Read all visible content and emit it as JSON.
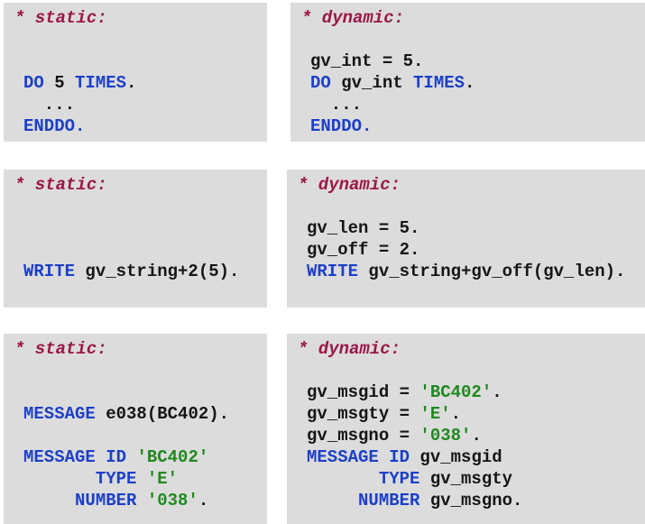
{
  "colors": {
    "background": "#dcdcdc",
    "comment": "#9b1748",
    "keyword": "#1c3fc8",
    "string": "#1f8a1f",
    "text": "#151515"
  },
  "boxes": [
    {
      "comment": "* static:",
      "lines": [
        [],
        [
          [
            "DO",
            "kw"
          ],
          [
            " 5 ",
            "tx"
          ],
          [
            "TIMES",
            "kw"
          ],
          [
            ".",
            "tx"
          ]
        ],
        [
          [
            "  ...",
            "tx"
          ]
        ],
        [
          [
            "ENDDO.",
            "kw"
          ]
        ]
      ]
    },
    {
      "comment": "* dynamic:",
      "lines": [
        [
          [
            "gv_int = 5.",
            "tx"
          ]
        ],
        [
          [
            "DO",
            "kw"
          ],
          [
            " gv_int ",
            "tx"
          ],
          [
            "TIMES",
            "kw"
          ],
          [
            ".",
            "tx"
          ]
        ],
        [
          [
            "  ...",
            "tx"
          ]
        ],
        [
          [
            "ENDDO.",
            "kw"
          ]
        ]
      ]
    },
    {
      "comment": "* static:",
      "lines": [
        [],
        [],
        [
          [
            "WRITE",
            "kw"
          ],
          [
            " gv_string+2(5).",
            "tx"
          ]
        ]
      ]
    },
    {
      "comment": "* dynamic:",
      "lines": [
        [
          [
            "gv_len = 5.",
            "tx"
          ]
        ],
        [
          [
            "gv_off = 2.",
            "tx"
          ]
        ],
        [
          [
            "WRITE",
            "kw"
          ],
          [
            " gv_string+gv_off(gv_len).",
            "tx"
          ]
        ]
      ]
    },
    {
      "comment": "* static:",
      "lines": [
        [],
        [
          [
            "MESSAGE",
            "kw"
          ],
          [
            " e038(BC402).",
            "tx"
          ]
        ],
        [],
        [
          [
            "MESSAGE ID",
            "kw"
          ],
          [
            " ",
            "tx"
          ],
          [
            "'BC402'",
            "st"
          ]
        ],
        [
          [
            "       TYPE",
            "kw"
          ],
          [
            " ",
            "tx"
          ],
          [
            "'E'",
            "st"
          ]
        ],
        [
          [
            "     NUMBER",
            "kw"
          ],
          [
            " ",
            "tx"
          ],
          [
            "'038'",
            "st"
          ],
          [
            ".",
            "tx"
          ]
        ]
      ]
    },
    {
      "comment": "* dynamic:",
      "lines": [
        [
          [
            "gv_msgid = ",
            "tx"
          ],
          [
            "'BC402'",
            "st"
          ],
          [
            ".",
            "tx"
          ]
        ],
        [
          [
            "gv_msgty = ",
            "tx"
          ],
          [
            "'E'",
            "st"
          ],
          [
            ".",
            "tx"
          ]
        ],
        [
          [
            "gv_msgno = ",
            "tx"
          ],
          [
            "'038'",
            "st"
          ],
          [
            ".",
            "tx"
          ]
        ],
        [
          [
            "MESSAGE ID",
            "kw"
          ],
          [
            " gv_msgid",
            "tx"
          ]
        ],
        [
          [
            "       TYPE",
            "kw"
          ],
          [
            " gv_msgty",
            "tx"
          ]
        ],
        [
          [
            "     NUMBER",
            "kw"
          ],
          [
            " gv_msgno.",
            "tx"
          ]
        ]
      ]
    }
  ]
}
